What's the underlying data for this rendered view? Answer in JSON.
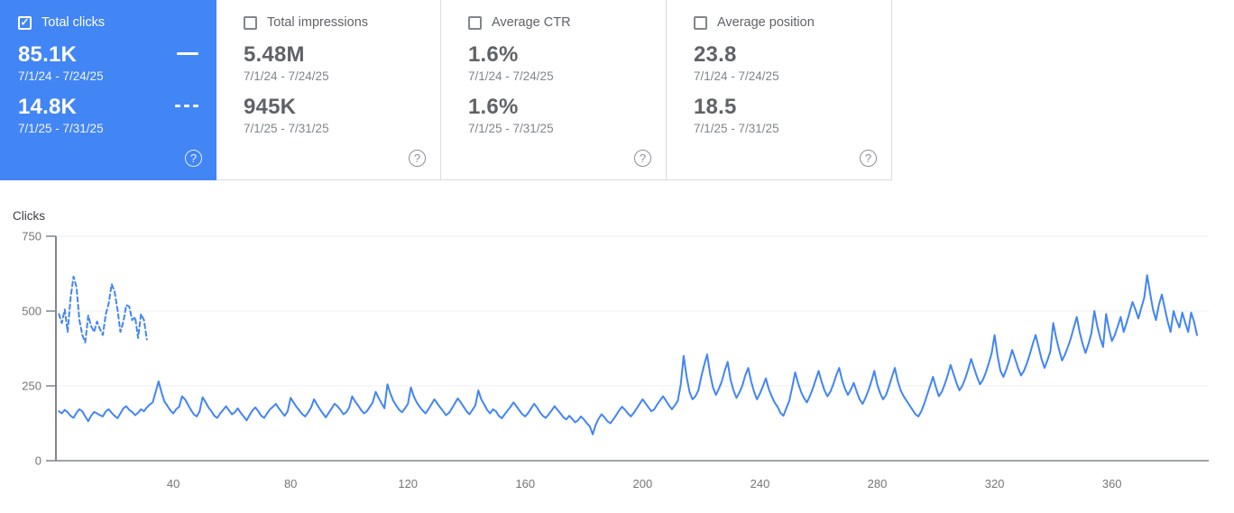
{
  "colors": {
    "selected_card_bg": "#4285f4",
    "line_blue": "#4285f4",
    "axis_gray": "#80868b",
    "grid_gray": "#ebedef"
  },
  "cards": [
    {
      "label": "Total clicks",
      "checked": true,
      "primary": {
        "value": "85.1K",
        "range": "7/1/24 - 7/24/25",
        "indicator": "solid-line"
      },
      "secondary": {
        "value": "14.8K",
        "range": "7/1/25 - 7/31/25",
        "indicator": "dashed-line"
      },
      "help_glyph": "?"
    },
    {
      "label": "Total impressions",
      "checked": false,
      "primary": {
        "value": "5.48M",
        "range": "7/1/24 - 7/24/25"
      },
      "secondary": {
        "value": "945K",
        "range": "7/1/25 - 7/31/25"
      },
      "help_glyph": "?"
    },
    {
      "label": "Average CTR",
      "checked": false,
      "primary": {
        "value": "1.6%",
        "range": "7/1/24 - 7/24/25"
      },
      "secondary": {
        "value": "1.6%",
        "range": "7/1/25 - 7/31/25"
      },
      "help_glyph": "?"
    },
    {
      "label": "Average position",
      "checked": false,
      "primary": {
        "value": "23.8",
        "range": "7/1/24 - 7/24/25"
      },
      "secondary": {
        "value": "18.5",
        "range": "7/1/25 - 7/31/25"
      },
      "help_glyph": "?"
    }
  ],
  "chart_data": {
    "type": "line",
    "ylabel": "Clicks",
    "ylim": [
      0,
      750
    ],
    "xlim": [
      0,
      393
    ],
    "yticks": [
      0,
      250,
      500,
      750
    ],
    "xticks": [
      40,
      80,
      120,
      160,
      200,
      240,
      280,
      320,
      360
    ],
    "grid": "horizontal",
    "legend_position": "none",
    "x_unit": "day index of date range",
    "series": [
      {
        "name": "7/1/24 - 7/24/25",
        "style": "solid",
        "color": "#4285f4",
        "x_start": 1,
        "values": [
          165,
          158,
          170,
          162,
          150,
          143,
          160,
          172,
          165,
          148,
          132,
          150,
          163,
          158,
          152,
          148,
          165,
          172,
          160,
          150,
          142,
          158,
          175,
          182,
          170,
          163,
          152,
          160,
          172,
          165,
          178,
          188,
          195,
          230,
          265,
          228,
          198,
          183,
          168,
          158,
          172,
          180,
          215,
          205,
          188,
          170,
          155,
          148,
          165,
          212,
          196,
          178,
          165,
          150,
          143,
          158,
          170,
          182,
          168,
          155,
          162,
          175,
          160,
          148,
          135,
          152,
          168,
          178,
          165,
          150,
          143,
          158,
          172,
          180,
          190,
          175,
          162,
          150,
          165,
          210,
          195,
          180,
          168,
          155,
          148,
          162,
          178,
          205,
          188,
          172,
          158,
          145,
          160,
          175,
          190,
          182,
          170,
          155,
          162,
          178,
          215,
          198,
          185,
          170,
          158,
          165,
          180,
          195,
          230,
          210,
          192,
          175,
          255,
          225,
          200,
          185,
          170,
          162,
          175,
          190,
          245,
          215,
          195,
          180,
          168,
          158,
          172,
          188,
          205,
          192,
          178,
          165,
          152,
          160,
          175,
          192,
          208,
          195,
          180,
          165,
          155,
          170,
          185,
          235,
          205,
          188,
          170,
          158,
          172,
          165,
          150,
          142,
          155,
          168,
          180,
          195,
          182,
          168,
          155,
          148,
          160,
          175,
          190,
          178,
          162,
          150,
          143,
          155,
          168,
          182,
          170,
          158,
          145,
          138,
          150,
          140,
          128,
          135,
          148,
          138,
          125,
          115,
          88,
          120,
          140,
          155,
          145,
          132,
          125,
          138,
          152,
          168,
          180,
          170,
          158,
          148,
          160,
          175,
          190,
          205,
          192,
          178,
          165,
          172,
          188,
          202,
          215,
          200,
          185,
          172,
          185,
          200,
          255,
          350,
          280,
          230,
          205,
          215,
          235,
          280,
          320,
          355,
          290,
          245,
          220,
          240,
          265,
          300,
          330,
          270,
          235,
          210,
          228,
          250,
          285,
          310,
          265,
          230,
          205,
          225,
          248,
          275,
          240,
          215,
          195,
          180,
          160,
          150,
          175,
          200,
          245,
          295,
          260,
          230,
          210,
          195,
          215,
          240,
          270,
          300,
          265,
          235,
          215,
          230,
          255,
          285,
          310,
          270,
          240,
          220,
          238,
          260,
          230,
          205,
          190,
          210,
          235,
          265,
          300,
          255,
          225,
          205,
          220,
          248,
          280,
          310,
          265,
          235,
          215,
          200,
          185,
          170,
          155,
          148,
          165,
          190,
          220,
          250,
          280,
          245,
          215,
          230,
          255,
          285,
          320,
          290,
          260,
          235,
          250,
          275,
          305,
          340,
          310,
          280,
          255,
          270,
          295,
          325,
          360,
          420,
          350,
          300,
          280,
          305,
          335,
          370,
          340,
          310,
          285,
          300,
          325,
          355,
          390,
          420,
          380,
          340,
          310,
          335,
          365,
          460,
          410,
          370,
          335,
          355,
          380,
          410,
          445,
          480,
          430,
          390,
          360,
          390,
          425,
          500,
          450,
          410,
          380,
          490,
          440,
          400,
          420,
          450,
          480,
          430,
          460,
          495,
          530,
          505,
          475,
          510,
          545,
          620,
          560,
          505,
          470,
          520,
          555,
          510,
          465,
          430,
          500,
          470,
          445,
          495,
          460,
          430,
          495,
          465,
          420
        ]
      },
      {
        "name": "7/1/25 - 7/31/25",
        "style": "dashed",
        "color": "#4285f4",
        "x_start": 1,
        "values": [
          490,
          460,
          505,
          430,
          545,
          615,
          580,
          470,
          420,
          395,
          485,
          450,
          430,
          465,
          440,
          420,
          490,
          525,
          590,
          565,
          505,
          430,
          465,
          520,
          515,
          470,
          480,
          410,
          490,
          470,
          405
        ]
      }
    ]
  }
}
